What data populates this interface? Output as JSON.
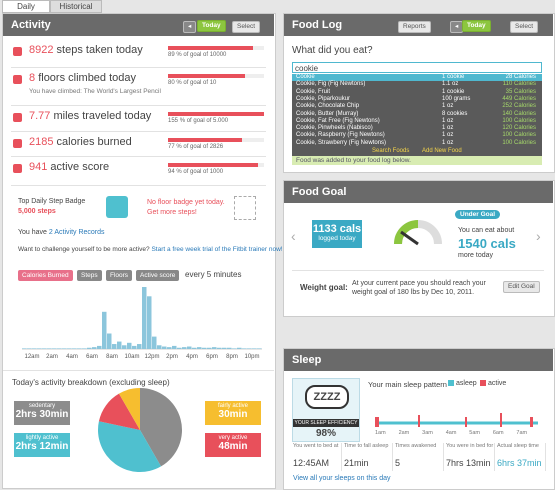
{
  "tabs": [
    "Daily",
    "Historical"
  ],
  "activity": {
    "title": "Activity",
    "today": "Today",
    "select": "Select",
    "stats": [
      {
        "value": 8922,
        "label": "steps taken today",
        "percent": 89,
        "goal": "% of goal of 10000"
      },
      {
        "value": 8,
        "label": "floors climbed today",
        "percent": 80,
        "goal": "% of goal of 10",
        "note": "You have climbed: The World's Largest Pencil"
      },
      {
        "value": 7.77,
        "label": "miles traveled today",
        "percent": 155,
        "goal": "% of goal of 5.000"
      },
      {
        "value": 2185,
        "label": "calories burned",
        "percent": 77,
        "goal": "% of goal of 2826"
      },
      {
        "value": 941,
        "label": "active score",
        "percent": 94,
        "goal": "% of goal of 1000"
      }
    ],
    "badge": {
      "title": "Top Daily Step Badge",
      "steps": "5,000 steps",
      "none": "No floor badge yet today.",
      "more": "Get more steps!"
    },
    "records": {
      "prefix": "You have",
      "link": "2 Activity Records"
    },
    "challenge": {
      "text": "Want to challenge yourself to be more active?",
      "link": "Start a free week trial of the Fitbit trainer now!"
    },
    "chart": {
      "buttons": [
        "Calories Burned",
        "Steps",
        "Floors",
        "Active score"
      ],
      "interval": "every 5 minutes",
      "x_labels": [
        "12am",
        "2am",
        "4am",
        "6am",
        "8am",
        "10am",
        "12pm",
        "2pm",
        "4pm",
        "6pm",
        "8pm",
        "10pm"
      ],
      "ylim": [
        0,
        100
      ],
      "color": "#8cc6dc",
      "values": [
        1,
        1,
        1,
        1,
        1,
        1,
        1,
        1,
        1,
        1,
        1,
        1,
        1,
        2,
        3,
        5,
        60,
        25,
        8,
        12,
        6,
        10,
        5,
        8,
        100,
        85,
        20,
        6,
        4,
        3,
        5,
        2,
        3,
        4,
        2,
        3,
        2,
        2,
        3,
        2,
        2,
        2,
        1,
        2,
        1,
        1,
        1,
        1
      ]
    },
    "breakdown": {
      "title": "Today's activity breakdown (excluding sleep)",
      "items": [
        {
          "name": "sedentary",
          "label": "2hrs 30min",
          "minutes": 150,
          "color": "#8c8c8c"
        },
        {
          "name": "lightly active",
          "label": "2hrs 12min",
          "minutes": 132,
          "color": "#4fc0cf"
        },
        {
          "name": "very active",
          "label": "48min",
          "minutes": 48,
          "color": "#e8505b"
        },
        {
          "name": "fairly active",
          "label": "30min",
          "minutes": 30,
          "color": "#f6be2f"
        }
      ]
    }
  },
  "food_log": {
    "title": "Food Log",
    "reports": "Reports",
    "today": "Today",
    "select": "Select",
    "question": "What did you eat?",
    "query": "cookie",
    "results": [
      [
        "Cookie",
        "1 cookie",
        "28 Calories"
      ],
      [
        "Cookie, Fig (Fig Newtons)",
        "1.1 oz",
        "110 Calories"
      ],
      [
        "Cookie, Fruit",
        "1 cookie",
        "35 Calories"
      ],
      [
        "Cookie, Piparkoukur",
        "100 grams",
        "449 Calories"
      ],
      [
        "Cookie, Chocolate Chip",
        "1 oz",
        "252 Calories"
      ],
      [
        "Cookie, Butter (Murray)",
        "8 cookies",
        "140 Calories"
      ],
      [
        "Cookie, Fat Free (Fig Newtons)",
        "1 oz",
        "100 Calories"
      ],
      [
        "Cookie, Pinwheels (Nabisco)",
        "1 oz",
        "120 Calories"
      ],
      [
        "Cookie, Raspberry (Fig Newtons)",
        "1 oz",
        "100 Calories"
      ],
      [
        "Cookie, Strawberry (Fig Newtons)",
        "1 oz",
        "100 Calories"
      ]
    ],
    "actions": [
      "Search Foods",
      "Add New Food"
    ],
    "message": "Food was added to your food log below."
  },
  "food_goal": {
    "title": "Food Goal",
    "logged": "1133 cals",
    "logged_sub": "logged today",
    "status": "Under Goal",
    "remaining_prefix": "You can eat about",
    "remaining": "1540 cals",
    "remaining_suffix": "more today",
    "weight_label": "Weight goal:",
    "weight_text": "At your current pace you should reach your weight goal of 180 lbs by Dec 10, 2011.",
    "edit": "Edit Goal"
  },
  "sleep": {
    "title": "Sleep",
    "icon": "ZZZZ",
    "efficiency_label": "YOUR SLEEP EFFICIENCY",
    "efficiency": "98%",
    "pattern_title": "Your main sleep pattern",
    "legend": [
      "asleep",
      "active"
    ],
    "times": [
      "1am",
      "2am",
      "3am",
      "4am",
      "5am",
      "6am",
      "7am"
    ],
    "stats": [
      {
        "label": "You went to bed at",
        "value": "12:45AM"
      },
      {
        "label": "Time to fall asleep",
        "value": "21min"
      },
      {
        "label": "Times awakened",
        "value": "5"
      },
      {
        "label": "You were in bed for",
        "value": "7hrs 13min"
      },
      {
        "label": "Actual sleep time",
        "value": "6hrs 37min"
      }
    ],
    "link": "View all your sleeps on this day"
  }
}
